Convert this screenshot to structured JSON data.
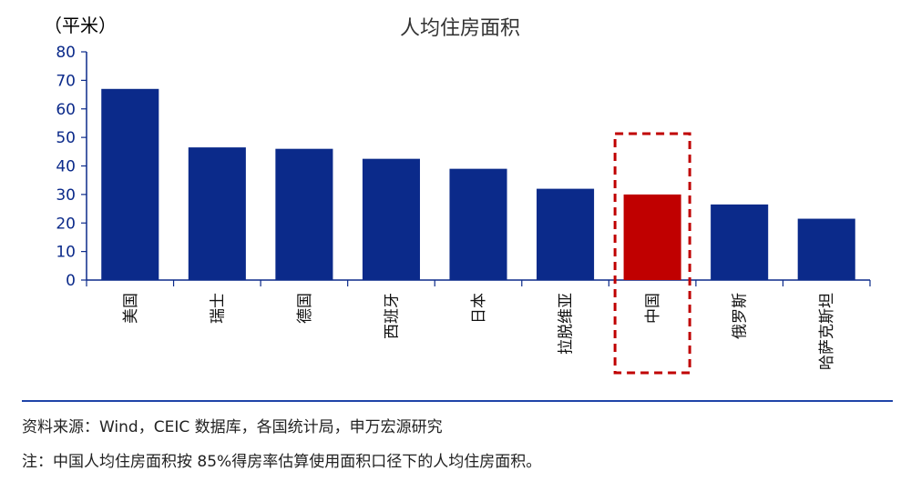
{
  "chart_data": {
    "type": "bar",
    "title": "人均住房面积",
    "unit_label": "（平米）",
    "categories": [
      "美国",
      "瑞士",
      "德国",
      "西班牙",
      "日本",
      "拉脱维亚",
      "中国",
      "俄罗斯",
      "哈萨克斯坦"
    ],
    "values": [
      67,
      46.5,
      46,
      42.5,
      39,
      32,
      30,
      26.5,
      21.5
    ],
    "highlight_category": "中国",
    "ylim": [
      0,
      80
    ],
    "yticks": [
      0,
      10,
      20,
      30,
      40,
      50,
      60,
      70,
      80
    ],
    "grid": false,
    "legend": "none",
    "colors": {
      "bar": "#0b2a8a",
      "highlight": "#c00000",
      "highlight_box": "#c00000",
      "axis": "#0b2a8a"
    }
  },
  "footer": {
    "source": "资料来源：Wind，CEIC 数据库，各国统计局，申万宏源研究",
    "note": "注：中国人均住房面积按 85%得房率估算使用面积口径下的人均住房面积。"
  }
}
